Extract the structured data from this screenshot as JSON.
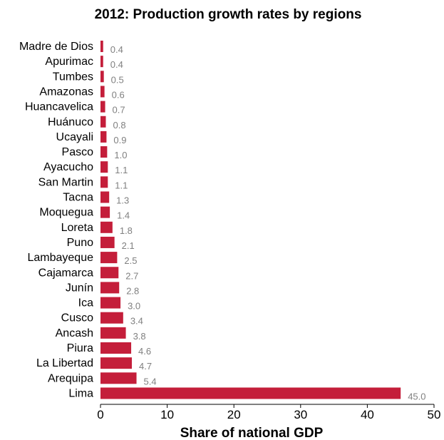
{
  "chart_data": {
    "type": "bar",
    "orientation": "horizontal",
    "title": "2012: Production growth rates by regions",
    "xlabel": "Share of national GDP",
    "ylabel": "",
    "xlim": [
      0,
      50
    ],
    "xticks": [
      0,
      10,
      20,
      30,
      40,
      50
    ],
    "grid": false,
    "legend": "none",
    "bar_color": "#c41e3a",
    "value_label_color": "#808080",
    "categories": [
      "Madre de Dios",
      "Apurimac",
      "Tumbes",
      "Amazonas",
      "Huancavelica",
      "Huánuco",
      "Ucayali",
      "Pasco",
      "Ayacucho",
      "San Martin",
      "Tacna",
      "Moquegua",
      "Loreta",
      "Puno",
      "Lambayeque",
      "Cajamarca",
      "Junín",
      "Ica",
      "Cusco",
      "Ancash",
      "Piura",
      "La Libertad",
      "Arequipa",
      "Lima"
    ],
    "values": [
      0.4,
      0.4,
      0.5,
      0.6,
      0.7,
      0.8,
      0.9,
      1.0,
      1.1,
      1.1,
      1.3,
      1.4,
      1.8,
      2.1,
      2.5,
      2.7,
      2.8,
      3.0,
      3.4,
      3.8,
      4.6,
      4.7,
      5.4,
      45.0
    ],
    "value_labels": [
      "0.4",
      "0.4",
      "0.5",
      "0.6",
      "0.7",
      "0.8",
      "0.9",
      "1.0",
      "1.1",
      "1.1",
      "1.3",
      "1.4",
      "1.8",
      "2.1",
      "2.5",
      "2.7",
      "2.8",
      "3.0",
      "3.4",
      "3.8",
      "4.6",
      "4.7",
      "5.4",
      "45.0"
    ]
  }
}
